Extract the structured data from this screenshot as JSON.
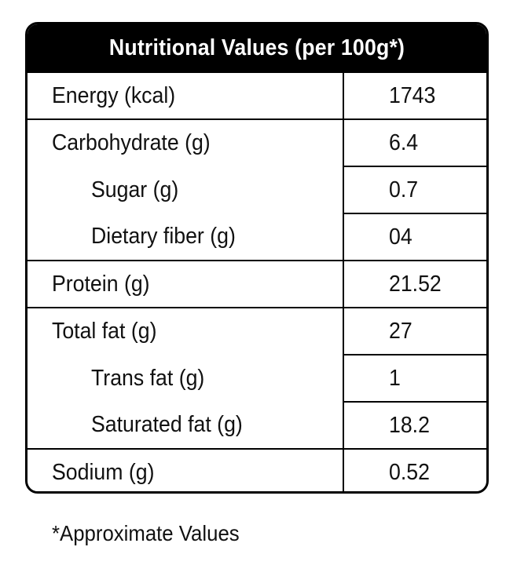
{
  "title": "Nutritional Values (per 100g*)",
  "rows": [
    {
      "label": "Energy (kcal)",
      "value": "1743",
      "indent": false
    },
    {
      "label": "Carbohydrate (g)",
      "value": "6.4",
      "indent": false
    },
    {
      "label": "Sugar (g)",
      "value": "0.7",
      "indent": true
    },
    {
      "label": "Dietary fiber (g)",
      "value": "04",
      "indent": true
    },
    {
      "label": "Protein (g)",
      "value": "21.52",
      "indent": false
    },
    {
      "label": "Total fat (g)",
      "value": "27",
      "indent": false
    },
    {
      "label": "Trans fat (g)",
      "value": "1",
      "indent": true
    },
    {
      "label": "Saturated fat (g)",
      "value": "18.2",
      "indent": true
    },
    {
      "label": "Sodium (g)",
      "value": "0.52",
      "indent": false
    }
  ],
  "footnote": "*Approximate Values",
  "colors": {
    "header_bg": "#000000",
    "header_text": "#ffffff",
    "border": "#000000"
  }
}
